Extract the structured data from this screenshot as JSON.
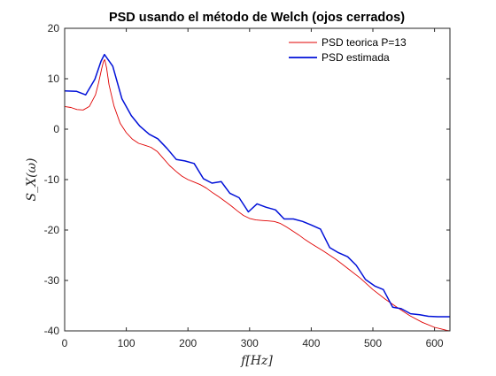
{
  "chart_data": {
    "type": "line",
    "title": "PSD usando el método de Welch (ojos cerrados)",
    "xlabel": "f[Hz]",
    "ylabel": "S_X(ω)",
    "xlim": [
      0,
      625
    ],
    "ylim": [
      -40,
      20
    ],
    "xticks": [
      0,
      100,
      200,
      300,
      400,
      500,
      600
    ],
    "yticks": [
      20,
      10,
      0,
      -10,
      -20,
      -30,
      -40
    ],
    "grid": false,
    "legend_position": "top-right",
    "colors": {
      "series_0": "#e00000",
      "series_1": "#0010d8"
    },
    "series": [
      {
        "name": "PSD teorica P=13",
        "x": [
          0,
          10,
          20,
          30,
          40,
          50,
          55,
          60,
          63,
          65,
          68,
          72,
          80,
          90,
          100,
          110,
          120,
          130,
          140,
          150,
          160,
          170,
          180,
          190,
          200,
          210,
          220,
          230,
          240,
          250,
          260,
          270,
          280,
          290,
          300,
          310,
          320,
          330,
          340,
          350,
          360,
          370,
          380,
          390,
          400,
          420,
          440,
          460,
          480,
          500,
          520,
          540,
          560,
          580,
          600,
          610,
          620,
          625
        ],
        "values": [
          4.5,
          4.3,
          3.9,
          3.8,
          4.5,
          6.8,
          9.2,
          12.0,
          13.4,
          13.8,
          12.2,
          8.8,
          4.6,
          1.2,
          -0.7,
          -2.0,
          -2.8,
          -3.2,
          -3.6,
          -4.4,
          -5.8,
          -7.2,
          -8.3,
          -9.3,
          -10.0,
          -10.5,
          -11.0,
          -11.7,
          -12.6,
          -13.4,
          -14.3,
          -15.2,
          -16.2,
          -17.1,
          -17.7,
          -18.0,
          -18.1,
          -18.2,
          -18.3,
          -18.7,
          -19.4,
          -20.2,
          -21.0,
          -21.9,
          -22.7,
          -24.2,
          -25.8,
          -27.7,
          -29.6,
          -31.8,
          -33.7,
          -35.4,
          -37.0,
          -38.3,
          -39.3,
          -39.6,
          -39.9,
          -40.0
        ]
      },
      {
        "name": "PSD estimada",
        "x": [
          0,
          19.5,
          34,
          49,
          59,
          64.5,
          78,
          93,
          108,
          122,
          137,
          151,
          166,
          181,
          195,
          210,
          225,
          239,
          254,
          268,
          283,
          298,
          312,
          327,
          342,
          356,
          371,
          386,
          400,
          415,
          430,
          444,
          459,
          473,
          488,
          503,
          517,
          532,
          546,
          561,
          576,
          590,
          605,
          620,
          625
        ],
        "values": [
          7.6,
          7.5,
          6.8,
          9.9,
          13.5,
          14.8,
          12.5,
          6.0,
          2.7,
          0.6,
          -1.0,
          -1.9,
          -3.8,
          -6.0,
          -6.3,
          -6.8,
          -9.8,
          -10.7,
          -10.4,
          -12.7,
          -13.6,
          -16.4,
          -14.8,
          -15.5,
          -16.0,
          -17.8,
          -17.8,
          -18.3,
          -19.0,
          -19.8,
          -23.5,
          -24.5,
          -25.3,
          -27.0,
          -29.8,
          -31.1,
          -31.8,
          -35.3,
          -35.6,
          -36.6,
          -36.8,
          -37.1,
          -37.2,
          -37.2,
          -37.2
        ]
      }
    ]
  }
}
